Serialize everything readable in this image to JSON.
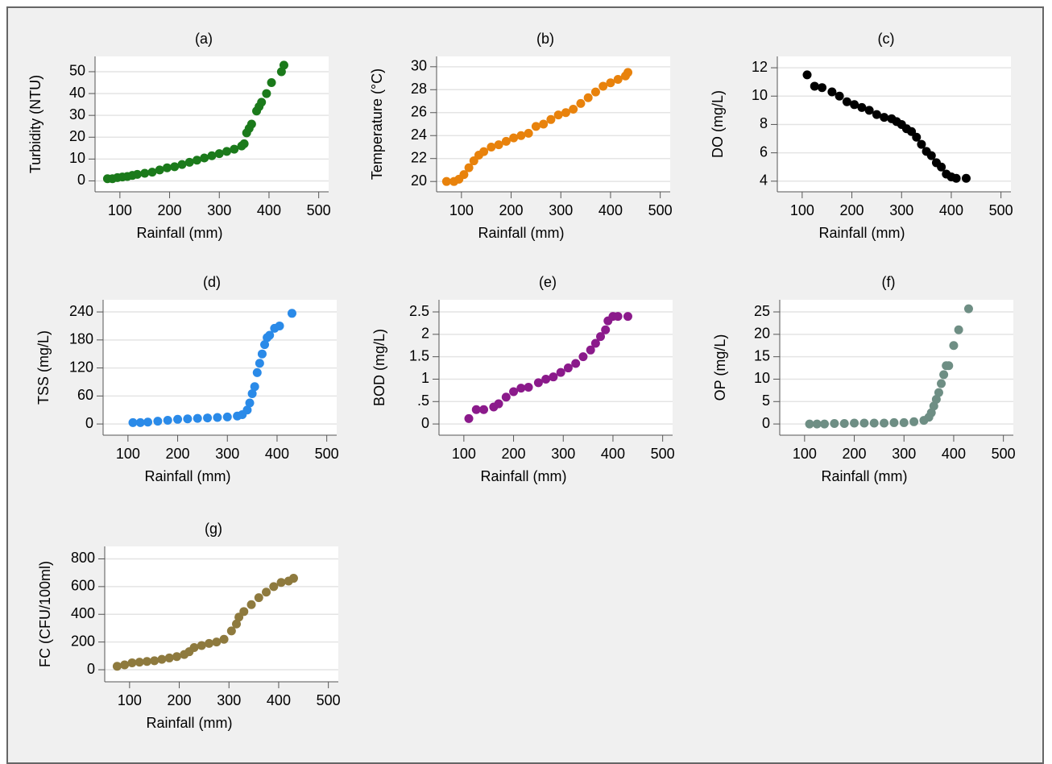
{
  "chart_data": [
    {
      "type": "scatter",
      "title": "(a)",
      "xlabel": "Rainfall (mm)",
      "ylabel": "Turbidity (NTU)",
      "color": "#1b7a1b",
      "x": [
        75,
        85,
        95,
        105,
        115,
        125,
        135,
        150,
        165,
        180,
        195,
        210,
        225,
        240,
        255,
        270,
        285,
        300,
        315,
        330,
        345,
        350,
        355,
        360,
        365,
        375,
        380,
        385,
        395,
        405,
        425,
        430
      ],
      "values": [
        1,
        1,
        1.5,
        1.8,
        2,
        2.5,
        3,
        3.5,
        4,
        5,
        6,
        6.5,
        7.5,
        8.5,
        9.5,
        10.5,
        11.5,
        12.5,
        13.5,
        14.5,
        16,
        17,
        22,
        24,
        26,
        32,
        34,
        36,
        40,
        45,
        50,
        53
      ],
      "xlim": [
        50,
        520
      ],
      "ylim": [
        -5,
        57
      ],
      "xticks": [
        100,
        200,
        300,
        400,
        500
      ],
      "yticks": [
        0,
        10,
        20,
        30,
        40,
        50
      ],
      "grid": true
    },
    {
      "type": "scatter",
      "title": "(b)",
      "xlabel": "Rainfall (mm)",
      "ylabel": "Temperature (°C)",
      "color": "#e8820c",
      "x": [
        70,
        85,
        95,
        105,
        115,
        125,
        135,
        145,
        160,
        175,
        190,
        205,
        220,
        235,
        250,
        265,
        280,
        295,
        310,
        325,
        340,
        355,
        370,
        385,
        400,
        415,
        430,
        435
      ],
      "values": [
        20,
        20,
        20.2,
        20.6,
        21.2,
        21.8,
        22.3,
        22.6,
        23,
        23.2,
        23.5,
        23.8,
        24,
        24.2,
        24.8,
        25,
        25.4,
        25.8,
        26,
        26.3,
        26.8,
        27.3,
        27.8,
        28.3,
        28.6,
        28.9,
        29.2,
        29.5
      ],
      "xlim": [
        50,
        520
      ],
      "ylim": [
        19.1,
        30.9
      ],
      "xticks": [
        100,
        200,
        300,
        400,
        500
      ],
      "yticks": [
        20,
        22,
        24,
        26,
        28,
        30
      ],
      "grid": true
    },
    {
      "type": "scatter",
      "title": "(c)",
      "xlabel": "Rainfall (mm)",
      "ylabel": "DO (mg/L)",
      "color": "#000000",
      "x": [
        110,
        125,
        140,
        160,
        175,
        190,
        205,
        220,
        235,
        250,
        265,
        280,
        290,
        300,
        310,
        320,
        330,
        340,
        350,
        360,
        370,
        380,
        390,
        400,
        410,
        430
      ],
      "values": [
        11.5,
        10.7,
        10.6,
        10.3,
        10.0,
        9.6,
        9.4,
        9.2,
        9.0,
        8.7,
        8.5,
        8.4,
        8.2,
        8.0,
        7.7,
        7.5,
        7.1,
        6.6,
        6.1,
        5.8,
        5.3,
        5.0,
        4.5,
        4.3,
        4.2,
        4.2
      ],
      "xlim": [
        50,
        520
      ],
      "ylim": [
        3.25,
        12.8
      ],
      "xticks": [
        100,
        200,
        300,
        400,
        500
      ],
      "yticks": [
        4,
        6,
        8,
        10,
        12
      ],
      "grid": true
    },
    {
      "type": "scatter",
      "title": "(d)",
      "xlabel": "Rainfall (mm)",
      "ylabel": "TSS (mg/L)",
      "color": "#2a8ae8",
      "x": [
        110,
        125,
        140,
        160,
        180,
        200,
        220,
        240,
        260,
        280,
        300,
        320,
        330,
        340,
        345,
        350,
        355,
        360,
        365,
        370,
        375,
        380,
        385,
        395,
        405,
        430
      ],
      "values": [
        3,
        3,
        4,
        6,
        8,
        10,
        11,
        12,
        13,
        14,
        15,
        17,
        20,
        30,
        45,
        65,
        80,
        110,
        130,
        150,
        170,
        185,
        190,
        205,
        210,
        237
      ],
      "xlim": [
        50,
        520
      ],
      "ylim": [
        -24,
        266
      ],
      "xticks": [
        100,
        200,
        300,
        400,
        500
      ],
      "yticks": [
        0,
        60,
        120,
        180,
        240
      ],
      "grid": true
    },
    {
      "type": "scatter",
      "title": "(e)",
      "xlabel": "Rainfall (mm)",
      "ylabel": "BOD (mg/L)",
      "color": "#8b1a8b",
      "x": [
        110,
        125,
        140,
        160,
        170,
        185,
        200,
        215,
        230,
        250,
        265,
        280,
        295,
        310,
        325,
        340,
        355,
        365,
        375,
        385,
        390,
        400,
        410,
        430
      ],
      "values": [
        0.12,
        0.32,
        0.32,
        0.38,
        0.45,
        0.6,
        0.72,
        0.8,
        0.82,
        0.92,
        1.0,
        1.05,
        1.15,
        1.25,
        1.35,
        1.5,
        1.65,
        1.8,
        1.95,
        2.1,
        2.3,
        2.4,
        2.4,
        2.4
      ],
      "xlim": [
        50,
        520
      ],
      "ylim": [
        -0.25,
        2.77
      ],
      "xticks": [
        100,
        200,
        300,
        400,
        500
      ],
      "yticks": [
        0,
        {
          "value": 0.5,
          "label": ".5"
        },
        1,
        1.5,
        2,
        2.5
      ],
      "grid": true
    },
    {
      "type": "scatter",
      "title": "(f)",
      "xlabel": "Rainfall (mm)",
      "ylabel": "OP (mg/L)",
      "color": "#6e8e84",
      "x": [
        110,
        125,
        140,
        160,
        180,
        200,
        220,
        240,
        260,
        280,
        300,
        320,
        340,
        350,
        355,
        360,
        365,
        370,
        375,
        380,
        385,
        390,
        400,
        410,
        430
      ],
      "values": [
        0,
        0,
        0,
        0.1,
        0.1,
        0.2,
        0.2,
        0.2,
        0.2,
        0.3,
        0.3,
        0.5,
        0.8,
        1.5,
        2.5,
        4,
        5.5,
        7,
        9,
        11,
        13,
        13,
        17.5,
        21,
        25.7
      ],
      "xlim": [
        50,
        520
      ],
      "ylim": [
        -2.5,
        27.7
      ],
      "xticks": [
        100,
        200,
        300,
        400,
        500
      ],
      "yticks": [
        0,
        5,
        10,
        15,
        20,
        25
      ],
      "grid": true
    },
    {
      "type": "scatter",
      "title": "(g)",
      "xlabel": "Rainfall (mm)",
      "ylabel": "FC (CFU/100ml)",
      "color": "#8e7a3e",
      "x": [
        75,
        90,
        105,
        120,
        135,
        150,
        165,
        180,
        195,
        210,
        220,
        230,
        245,
        260,
        275,
        290,
        305,
        315,
        320,
        330,
        345,
        360,
        375,
        390,
        405,
        420,
        430
      ],
      "values": [
        25,
        35,
        50,
        55,
        60,
        65,
        75,
        85,
        95,
        110,
        130,
        160,
        175,
        190,
        200,
        220,
        280,
        330,
        380,
        420,
        470,
        520,
        560,
        600,
        630,
        640,
        660
      ],
      "xlim": [
        50,
        520
      ],
      "ylim": [
        -87,
        890
      ],
      "xticks": [
        100,
        200,
        300,
        400,
        500
      ],
      "yticks": [
        0,
        200,
        400,
        600,
        800
      ],
      "grid": true
    }
  ]
}
